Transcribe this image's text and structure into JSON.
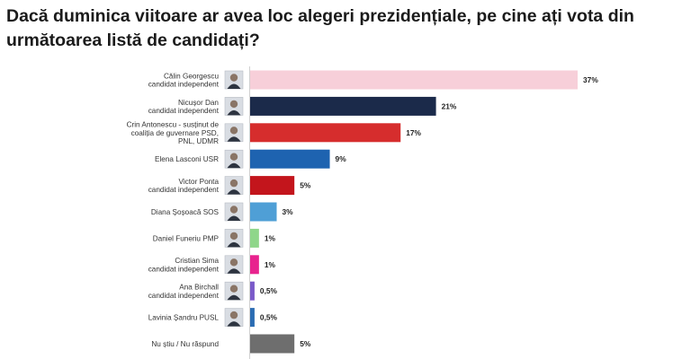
{
  "chart_data": {
    "type": "bar",
    "orientation": "horizontal",
    "title": "Dacă duminica viitoare ar avea loc alegeri prezidențiale, pe cine ați vota din următoarea listă de candidați?",
    "xlim": [
      0,
      37
    ],
    "grid": false,
    "legend": "none",
    "categories": [
      {
        "line1": "Călin Georgescu",
        "line2": "candidat independent",
        "line3": ""
      },
      {
        "line1": "Nicușor Dan",
        "line2": "candidat independent",
        "line3": ""
      },
      {
        "line1": "Crin Antonescu - susținut de",
        "line2": "coaliția de guvernare PSD,",
        "line3": "PNL, UDMR"
      },
      {
        "line1": "Elena Lasconi USR",
        "line2": "",
        "line3": ""
      },
      {
        "line1": "Victor Ponta",
        "line2": "candidat independent",
        "line3": ""
      },
      {
        "line1": "Diana Șoșoacă SOS",
        "line2": "",
        "line3": ""
      },
      {
        "line1": "Daniel Funeriu PMP",
        "line2": "",
        "line3": ""
      },
      {
        "line1": "Cristian Sima",
        "line2": "candidat independent",
        "line3": ""
      },
      {
        "line1": "Ana Birchall",
        "line2": "candidat independent",
        "line3": ""
      },
      {
        "line1": "Lavinia Șandru PUSL",
        "line2": "",
        "line3": ""
      },
      {
        "line1": "Nu știu / Nu răspund",
        "line2": "",
        "line3": ""
      }
    ],
    "values": [
      37,
      21,
      17,
      9,
      5,
      3,
      1,
      1,
      0.5,
      0.5,
      5
    ],
    "value_labels": [
      "37%",
      "21%",
      "17%",
      "9%",
      "5%",
      "3%",
      "1%",
      "1%",
      "0,5%",
      "0,5%",
      "5%"
    ],
    "colors": [
      "#f7cfd9",
      "#1b2a4a",
      "#d62d2d",
      "#1e63b0",
      "#c3151c",
      "#4f9fd6",
      "#8fd68a",
      "#e8238e",
      "#7a5ac9",
      "#2b6cb3",
      "#6e6e6e"
    ],
    "photo_icons": [
      "candidate-photo",
      "candidate-photo",
      "candidate-photo",
      "candidate-photo",
      "candidate-photo",
      "candidate-photo",
      "candidate-photo",
      "candidate-photo",
      "candidate-photo",
      "candidate-photo",
      ""
    ]
  }
}
